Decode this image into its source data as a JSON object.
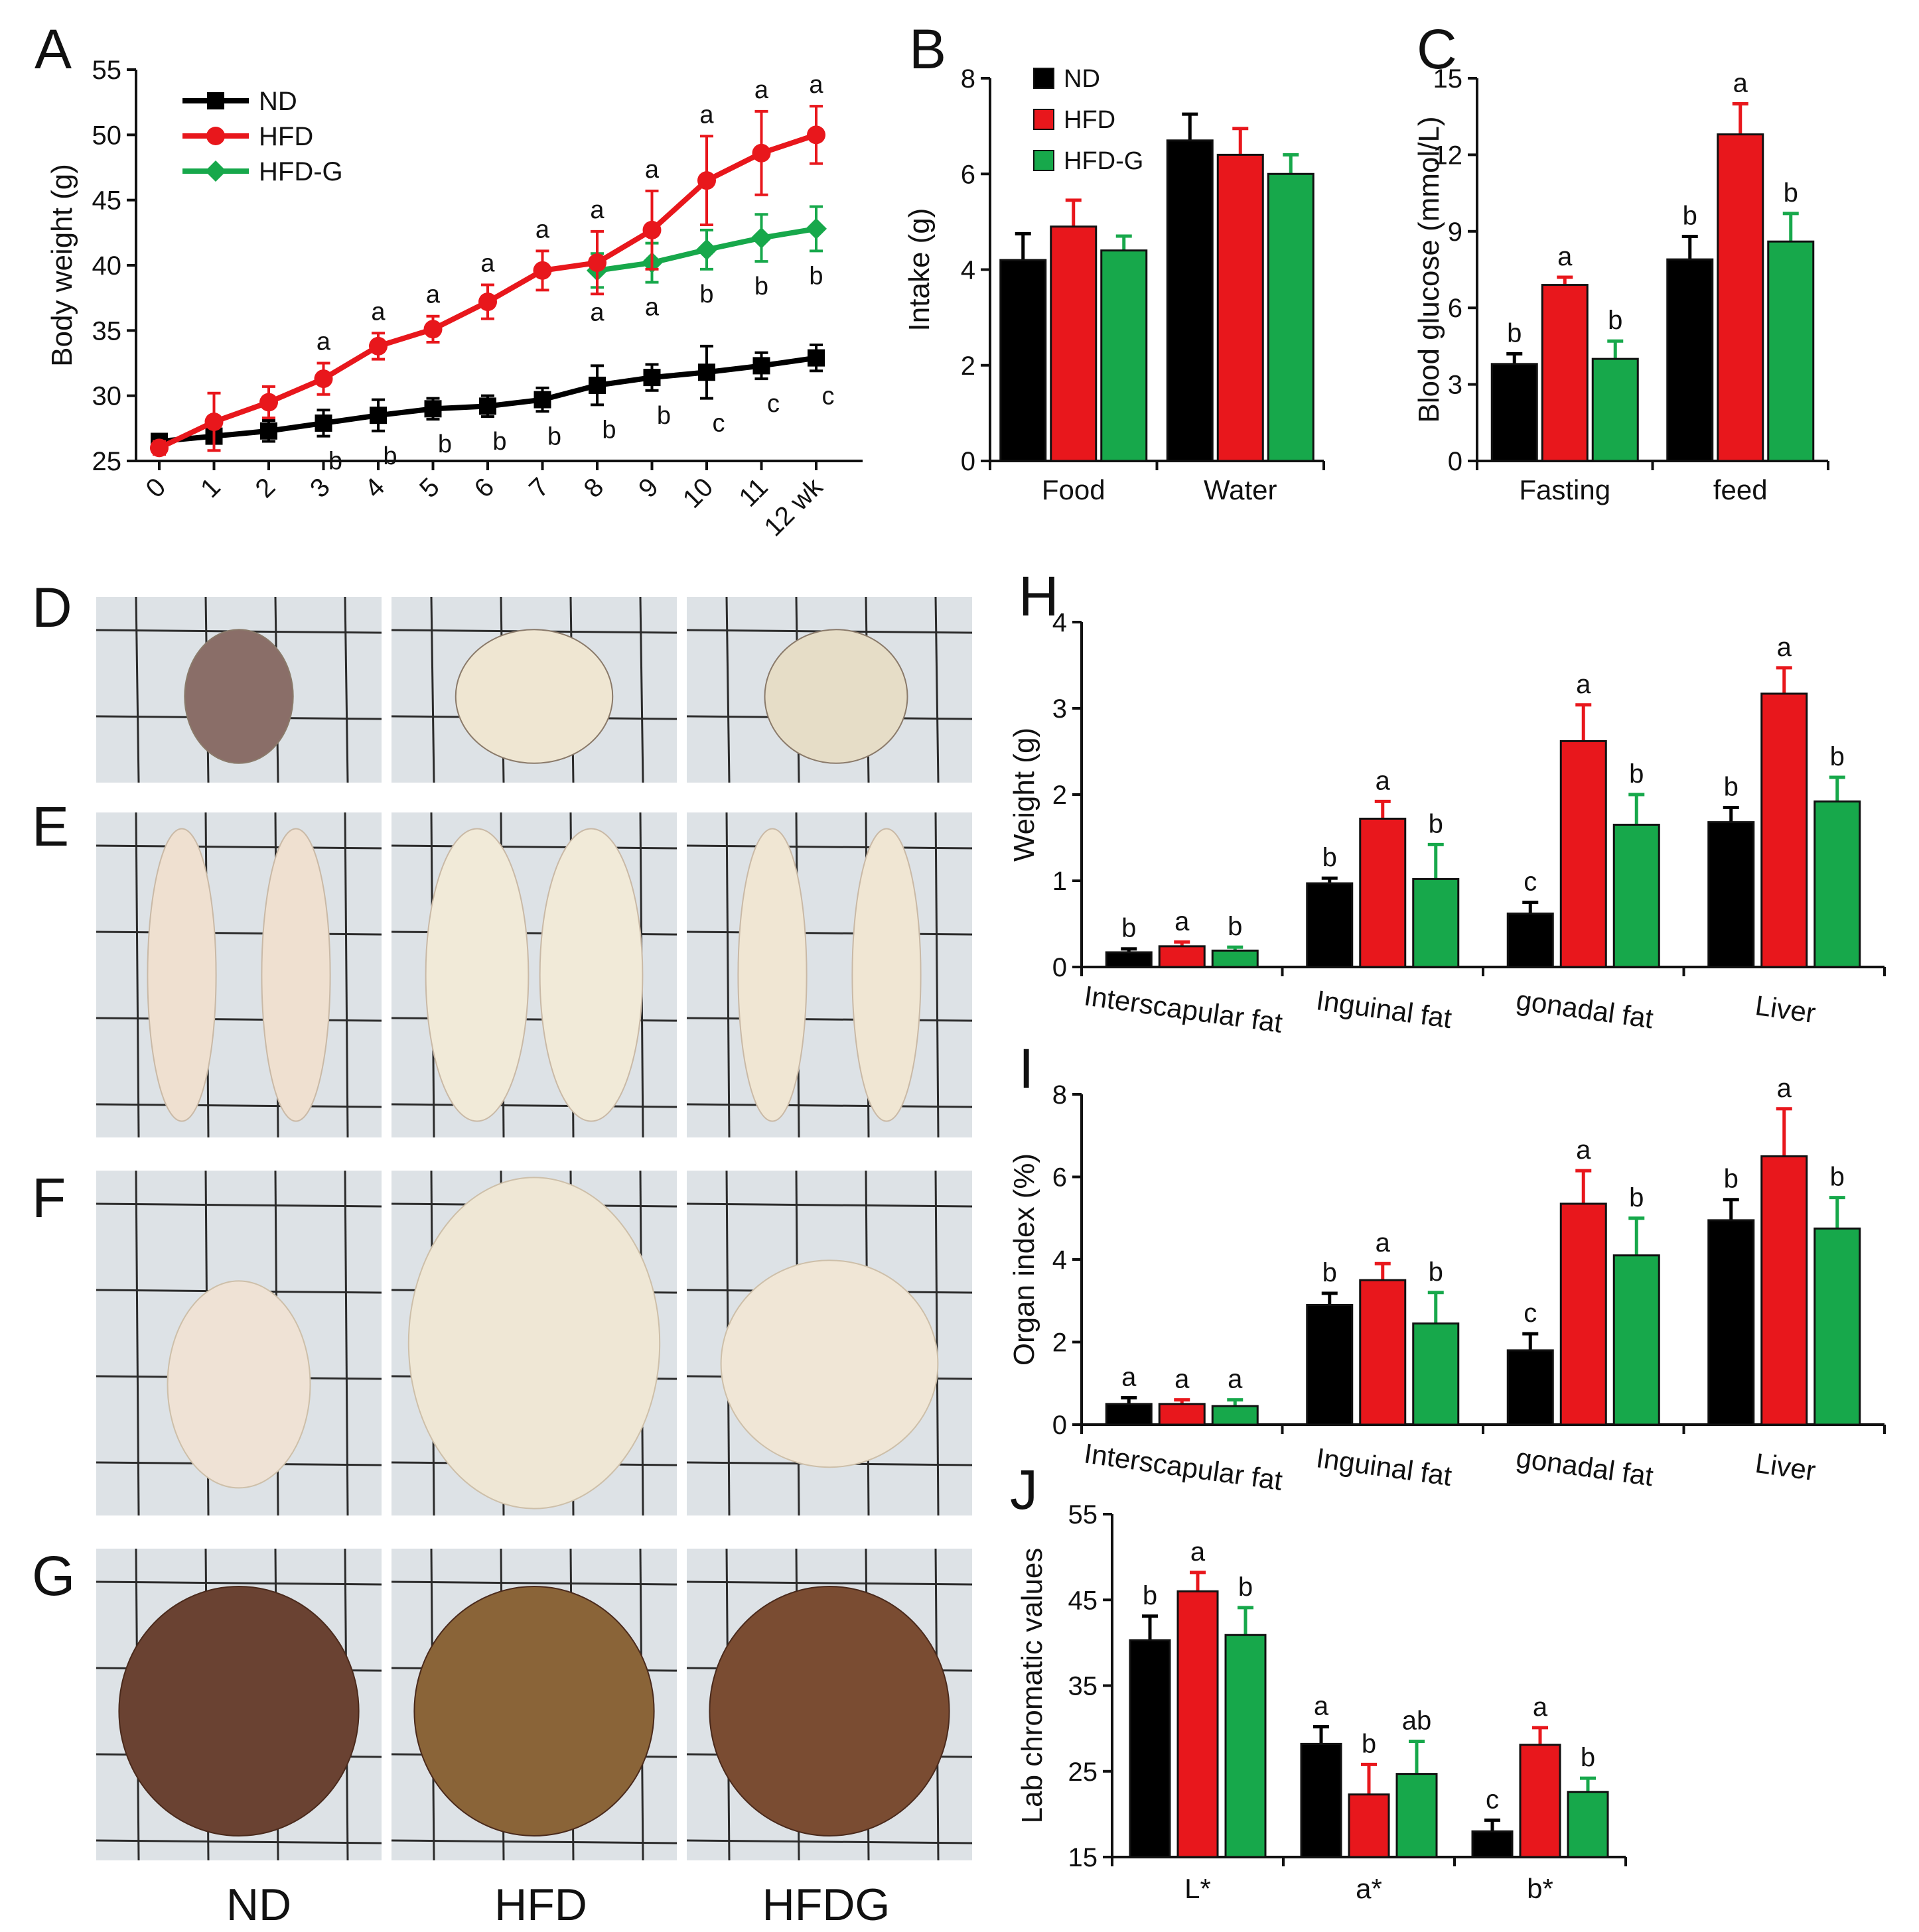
{
  "colors": {
    "ND": "#000000",
    "HFD": "#e8171c",
    "HFDG": "#17a84b",
    "grid": "#2b2b2b",
    "paper": "#dde2e6"
  },
  "chart_data": [
    {
      "id": "A",
      "type": "line",
      "panel_letter": "A",
      "ylabel": "Body weight (g)",
      "ylim": [
        25,
        55
      ],
      "yticks": [
        25,
        30,
        35,
        40,
        45,
        50,
        55
      ],
      "x": [
        0,
        1,
        2,
        3,
        4,
        5,
        6,
        7,
        8,
        9,
        10,
        11,
        12
      ],
      "xtick_labels": [
        "0",
        "1",
        "2",
        "3",
        "4",
        "5",
        "6",
        "7",
        "8",
        "9",
        "10",
        "11",
        "12 wk"
      ],
      "legend": [
        "ND",
        "HFD",
        "HFD-G"
      ],
      "series": [
        {
          "name": "ND",
          "x": [
            0,
            1,
            2,
            3,
            4,
            5,
            6,
            7,
            8,
            9,
            10,
            11,
            12
          ],
          "values": [
            26.5,
            26.9,
            27.3,
            27.9,
            28.5,
            29.0,
            29.2,
            29.7,
            30.8,
            31.4,
            31.8,
            32.3,
            32.9
          ],
          "errors": [
            0.5,
            0.5,
            0.8,
            1.0,
            1.2,
            0.8,
            0.8,
            0.9,
            1.5,
            1.0,
            2.0,
            1.0,
            1.0
          ],
          "labels": [
            "",
            "",
            "",
            "b",
            "b",
            "b",
            "b",
            "b",
            "b",
            "b",
            "c",
            "c",
            "c"
          ]
        },
        {
          "name": "HFD",
          "x": [
            0,
            1,
            2,
            3,
            4,
            5,
            6,
            7,
            8,
            9,
            10,
            11,
            12
          ],
          "values": [
            26.0,
            28.0,
            29.5,
            31.3,
            33.8,
            35.1,
            37.2,
            39.6,
            40.2,
            42.7,
            46.5,
            48.6,
            50.0
          ],
          "errors": [
            0.5,
            2.2,
            1.2,
            1.2,
            1.0,
            1.0,
            1.3,
            1.5,
            2.4,
            3.0,
            3.4,
            3.2,
            2.2
          ],
          "labels": [
            "",
            "",
            "",
            "a",
            "a",
            "a",
            "a",
            "a",
            "a",
            "a",
            "a",
            "a",
            "a"
          ]
        },
        {
          "name": "HFD-G",
          "x": [
            8,
            9,
            10,
            11,
            12
          ],
          "values": [
            39.6,
            40.2,
            41.2,
            42.1,
            42.8
          ],
          "errors": [
            1.3,
            1.5,
            1.5,
            1.8,
            1.7
          ],
          "labels": [
            "a",
            "a",
            "b",
            "b",
            "b"
          ]
        }
      ]
    },
    {
      "id": "B",
      "type": "bar",
      "panel_letter": "B",
      "ylabel": "Intake (g)",
      "ylim": [
        0,
        8
      ],
      "yticks": [
        0,
        2,
        4,
        6,
        8
      ],
      "categories": [
        "Food",
        "Water"
      ],
      "legend": [
        "ND",
        "HFD",
        "HFD-G"
      ],
      "series": [
        {
          "name": "ND",
          "values": [
            4.2,
            6.7
          ],
          "errors": [
            0.55,
            0.55
          ],
          "labels": [
            "",
            ""
          ]
        },
        {
          "name": "HFD",
          "values": [
            4.9,
            6.4
          ],
          "errors": [
            0.55,
            0.55
          ],
          "labels": [
            "",
            ""
          ]
        },
        {
          "name": "HFD-G",
          "values": [
            4.4,
            6.0
          ],
          "errors": [
            0.3,
            0.4
          ],
          "labels": [
            "",
            ""
          ]
        }
      ]
    },
    {
      "id": "C",
      "type": "bar",
      "panel_letter": "C",
      "ylabel": "Blood glucose (mmol/L)",
      "ylim": [
        0,
        15
      ],
      "yticks": [
        0,
        3,
        6,
        9,
        12,
        15
      ],
      "categories": [
        "Fasting",
        "feed"
      ],
      "series": [
        {
          "name": "ND",
          "values": [
            3.8,
            7.9
          ],
          "errors": [
            0.4,
            0.9
          ],
          "labels": [
            "b",
            "b"
          ]
        },
        {
          "name": "HFD",
          "values": [
            6.9,
            12.8
          ],
          "errors": [
            0.3,
            1.2
          ],
          "labels": [
            "a",
            "a"
          ]
        },
        {
          "name": "HFD-G",
          "values": [
            4.0,
            8.6
          ],
          "errors": [
            0.7,
            1.1
          ],
          "labels": [
            "b",
            "b"
          ]
        }
      ]
    },
    {
      "id": "H",
      "type": "bar",
      "panel_letter": "H",
      "ylabel": "Weight (g)",
      "ylim": [
        0,
        4
      ],
      "yticks": [
        0,
        1,
        2,
        3,
        4
      ],
      "categories": [
        "Interscapular fat",
        "Inguinal fat",
        "gonadal fat",
        "Liver"
      ],
      "series": [
        {
          "name": "ND",
          "values": [
            0.17,
            0.97,
            0.62,
            1.68
          ],
          "errors": [
            0.04,
            0.06,
            0.13,
            0.17
          ],
          "labels": [
            "b",
            "b",
            "c",
            "b"
          ]
        },
        {
          "name": "HFD",
          "values": [
            0.24,
            1.72,
            2.62,
            3.17
          ],
          "errors": [
            0.05,
            0.2,
            0.42,
            0.3
          ],
          "labels": [
            "a",
            "a",
            "a",
            "a"
          ]
        },
        {
          "name": "HFD-G",
          "values": [
            0.19,
            1.02,
            1.65,
            1.92
          ],
          "errors": [
            0.04,
            0.4,
            0.35,
            0.28
          ],
          "labels": [
            "b",
            "b",
            "b",
            "b"
          ]
        }
      ]
    },
    {
      "id": "I",
      "type": "bar",
      "panel_letter": "I",
      "ylabel": "Organ index (%)",
      "ylim": [
        0,
        8
      ],
      "yticks": [
        0,
        2,
        4,
        6,
        8
      ],
      "categories": [
        "Interscapular fat",
        "Inguinal fat",
        "gonadal fat",
        "Liver"
      ],
      "series": [
        {
          "name": "ND",
          "values": [
            0.5,
            2.9,
            1.8,
            4.95
          ],
          "errors": [
            0.15,
            0.28,
            0.4,
            0.5
          ],
          "labels": [
            "a",
            "b",
            "c",
            "b"
          ]
        },
        {
          "name": "HFD",
          "values": [
            0.5,
            3.5,
            5.35,
            6.5
          ],
          "errors": [
            0.1,
            0.4,
            0.8,
            1.15
          ],
          "labels": [
            "a",
            "a",
            "a",
            "a"
          ]
        },
        {
          "name": "HFD-G",
          "values": [
            0.45,
            2.45,
            4.1,
            4.75
          ],
          "errors": [
            0.15,
            0.75,
            0.9,
            0.75
          ],
          "labels": [
            "a",
            "b",
            "b",
            "b"
          ]
        }
      ]
    },
    {
      "id": "J",
      "type": "bar",
      "panel_letter": "J",
      "ylabel": "Lab chromatic values",
      "ylim": [
        15,
        55
      ],
      "yticks": [
        15,
        25,
        35,
        45,
        55
      ],
      "categories": [
        "L*",
        "a*",
        "b*"
      ],
      "series": [
        {
          "name": "ND",
          "values": [
            40.3,
            28.2,
            18.0
          ],
          "errors": [
            2.8,
            2.0,
            1.3
          ],
          "labels": [
            "b",
            "a",
            "c"
          ]
        },
        {
          "name": "HFD",
          "values": [
            46.0,
            22.3,
            28.1
          ],
          "errors": [
            2.2,
            3.5,
            2.0
          ],
          "labels": [
            "a",
            "b",
            "a"
          ]
        },
        {
          "name": "HFD-G",
          "values": [
            40.9,
            24.7,
            22.6
          ],
          "errors": [
            3.2,
            3.8,
            1.6
          ],
          "labels": [
            "b",
            "ab",
            "b"
          ]
        }
      ]
    }
  ],
  "photos": {
    "rows": [
      {
        "letter": "D",
        "tissue": "interscapular fat"
      },
      {
        "letter": "E",
        "tissue": "inguinal fat"
      },
      {
        "letter": "F",
        "tissue": "gonadal fat"
      },
      {
        "letter": "G",
        "tissue": "liver"
      }
    ],
    "group_labels": [
      "ND",
      "HFD",
      "HFDG"
    ]
  }
}
